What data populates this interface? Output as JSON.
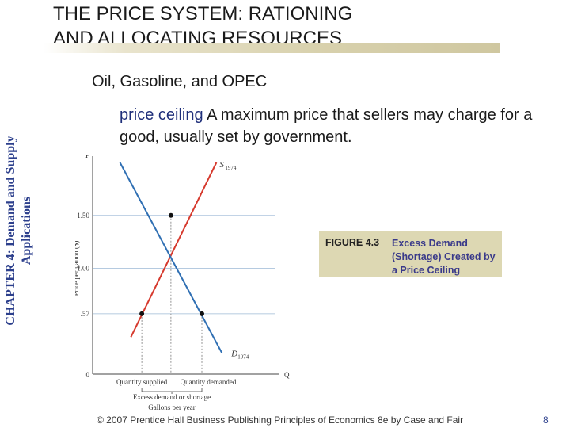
{
  "slide": {
    "title_line1": "THE PRICE SYSTEM:  RATIONING",
    "title_line2": "AND ALLOCATING RESOURCES",
    "subtitle": "Oil, Gasoline, and OPEC",
    "side_label_line1": "CHAPTER 4:  Demand and Supply",
    "side_label_line2": "Applications",
    "definition_term": "price ceiling",
    "definition_text": "  A maximum price that sellers may charge for a good, usually set by government.",
    "figure_number": "FIGURE 4.3",
    "figure_caption": "Excess Demand (Shortage) Created by a Price Ceiling",
    "footer": "© 2007 Prentice Hall Business Publishing   Principles of Economics 8e by Case and Fair",
    "page_number": "8"
  },
  "colors": {
    "supply_line": "#d63a2e",
    "demand_line": "#2f6fb3",
    "ref_line": "#9db9d6",
    "caption_bg": "#ddd8b3"
  },
  "chart_data": {
    "type": "line",
    "ylabel": "Price per gallon ($)",
    "xlabel": "Gallons per year",
    "y_axis_top_label": "P",
    "x_axis_end_label": "Q",
    "origin_label": "0",
    "y_ticks": [
      {
        "label": "1.50",
        "value": 1.5
      },
      {
        "label": "1.00",
        "value": 1.0
      },
      {
        "label": ".57",
        "value": 0.57
      }
    ],
    "ylim": [
      0,
      2.0
    ],
    "xlim": [
      0,
      10
    ],
    "series": [
      {
        "name": "S1974",
        "label_main": "S",
        "label_sub": "1974",
        "points": [
          [
            2.1,
            0.35
          ],
          [
            6.8,
            2.0
          ]
        ]
      },
      {
        "name": "D1974",
        "label_main": "D",
        "label_sub": "1974",
        "points": [
          [
            1.5,
            2.0
          ],
          [
            7.1,
            0.2
          ]
        ]
      }
    ],
    "equilibrium": {
      "q": 4.3,
      "p": 1.5
    },
    "ceiling_price": 0.57,
    "quantity_supplied_at_ceiling": 2.7,
    "quantity_demanded_at_ceiling": 6.0,
    "quantity_supplied_label": "Quantity supplied",
    "quantity_demanded_label": "Quantity demanded",
    "shortage_label": "Excess demand or shortage"
  }
}
